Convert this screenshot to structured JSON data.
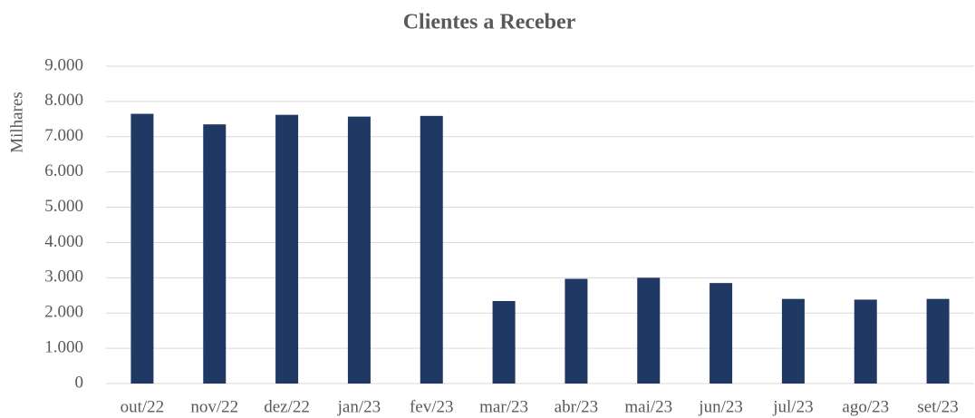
{
  "chart_data": {
    "type": "bar",
    "title": "Clientes a Receber",
    "y_label": "Milhares",
    "categories": [
      "out/22",
      "nov/22",
      "dez/22",
      "jan/23",
      "fev/23",
      "mar/23",
      "abr/23",
      "mai/23",
      "jun/23",
      "jul/23",
      "ago/23",
      "set/23"
    ],
    "values": [
      7650,
      7350,
      7620,
      7570,
      7590,
      2340,
      2970,
      3000,
      2850,
      2400,
      2380,
      2400
    ],
    "color": "#1f3864",
    "ylim": [
      0,
      9000
    ],
    "yticks": [
      0,
      {
        "value": 1000,
        "label": "1.000"
      },
      {
        "value": 2000,
        "label": "2.000"
      },
      {
        "value": 3000,
        "label": "3.000"
      },
      {
        "value": 4000,
        "label": "4.000"
      },
      {
        "value": 5000,
        "label": "5.000"
      },
      {
        "value": 6000,
        "label": "6.000"
      },
      {
        "value": 7000,
        "label": "7.000"
      },
      {
        "value": 8000,
        "label": "8.000"
      },
      {
        "value": 9000,
        "label": "9.000"
      }
    ],
    "grid": true
  }
}
